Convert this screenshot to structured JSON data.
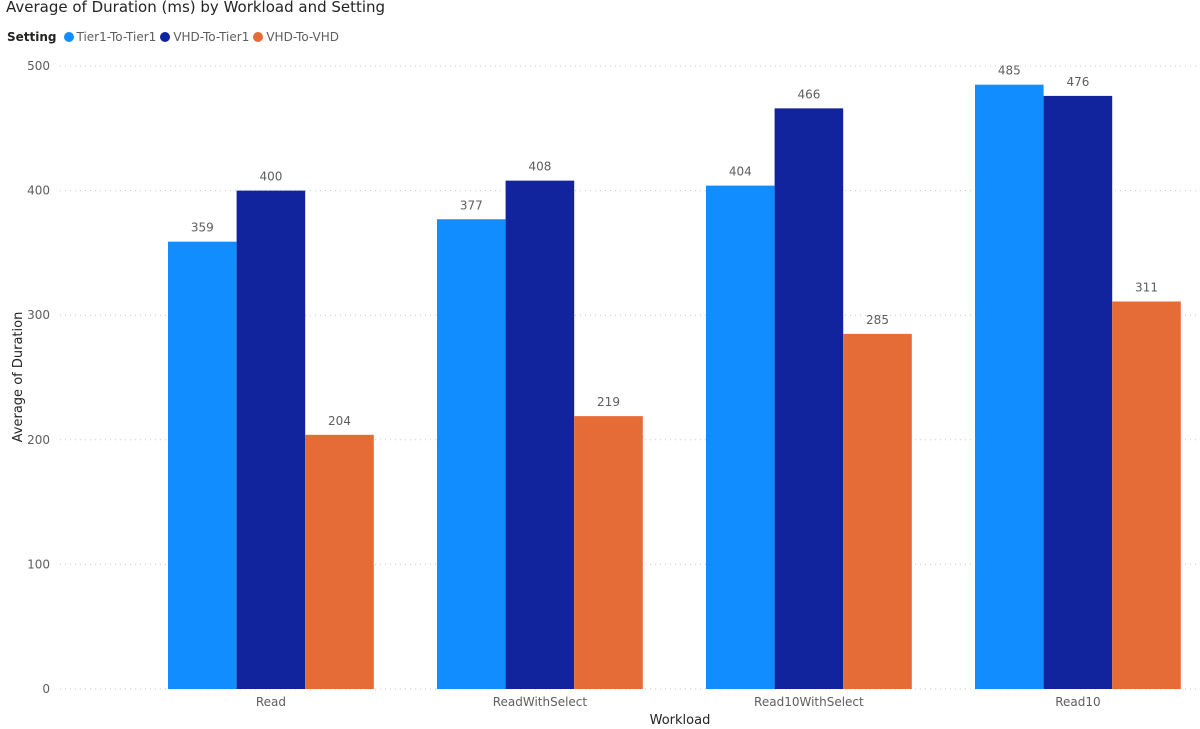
{
  "chart_data": {
    "type": "bar",
    "title": "Average of Duration (ms) by Workload and Setting",
    "legend_title": "Setting",
    "legend_placement": "top-left",
    "xlabel": "Workload",
    "ylabel": "Average of Duration",
    "ylim": [
      0,
      500
    ],
    "yticks": [
      0,
      100,
      200,
      300,
      400,
      500
    ],
    "grid": true,
    "categories": [
      "Read",
      "ReadWithSelect",
      "Read10WithSelect",
      "Read10"
    ],
    "series": [
      {
        "name": "Tier1-To-Tier1",
        "color": "#118dff",
        "values": [
          359,
          377,
          404,
          485
        ]
      },
      {
        "name": "VHD-To-Tier1",
        "color": "#12239e",
        "values": [
          400,
          408,
          466,
          476
        ]
      },
      {
        "name": "VHD-To-VHD",
        "color": "#e66c37",
        "values": [
          204,
          219,
          285,
          311
        ]
      }
    ]
  }
}
